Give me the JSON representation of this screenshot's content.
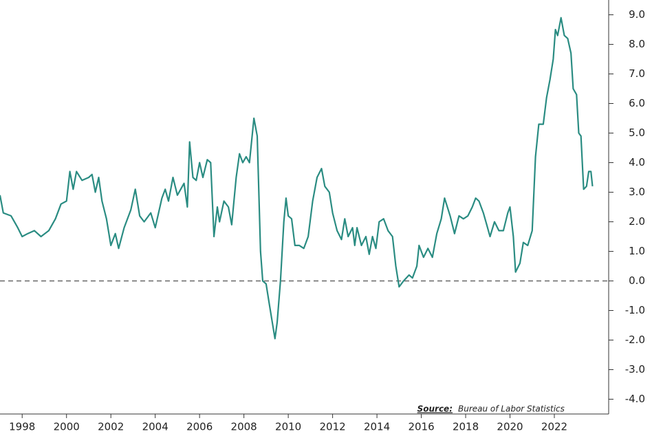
{
  "chart_data": {
    "type": "line",
    "source_label": "Source:",
    "source": "Bureau of Labor Statistics",
    "color": "#2a8c82",
    "x": [
      1997.0,
      1997.15,
      1997.5,
      1997.8,
      1998.0,
      1998.25,
      1998.55,
      1998.85,
      1999.2,
      1999.5,
      1999.75,
      2000.0,
      2000.15,
      2000.3,
      2000.45,
      2000.7,
      2001.0,
      2001.15,
      2001.3,
      2001.45,
      2001.6,
      2001.8,
      2002.0,
      2002.2,
      2002.35,
      2002.6,
      2002.9,
      2003.1,
      2003.3,
      2003.5,
      2003.8,
      2004.0,
      2004.3,
      2004.45,
      2004.6,
      2004.8,
      2005.0,
      2005.3,
      2005.45,
      2005.55,
      2005.7,
      2005.85,
      2006.0,
      2006.15,
      2006.35,
      2006.5,
      2006.65,
      2006.8,
      2006.9,
      2007.1,
      2007.3,
      2007.45,
      2007.65,
      2007.8,
      2007.95,
      2008.1,
      2008.25,
      2008.45,
      2008.6,
      2008.75,
      2008.85,
      2009.0,
      2009.15,
      2009.3,
      2009.4,
      2009.5,
      2009.65,
      2009.8,
      2009.9,
      2010.0,
      2010.15,
      2010.3,
      2010.5,
      2010.7,
      2010.9,
      2011.1,
      2011.3,
      2011.5,
      2011.65,
      2011.85,
      2012.0,
      2012.2,
      2012.4,
      2012.55,
      2012.7,
      2012.9,
      2013.0,
      2013.1,
      2013.3,
      2013.5,
      2013.65,
      2013.8,
      2013.95,
      2014.1,
      2014.3,
      2014.5,
      2014.7,
      2014.85,
      2015.0,
      2015.2,
      2015.45,
      2015.6,
      2015.8,
      2015.9,
      2016.1,
      2016.3,
      2016.5,
      2016.7,
      2016.9,
      2017.05,
      2017.3,
      2017.5,
      2017.7,
      2017.9,
      2018.1,
      2018.3,
      2018.45,
      2018.6,
      2018.8,
      2018.95,
      2019.1,
      2019.3,
      2019.5,
      2019.7,
      2019.9,
      2020.0,
      2020.15,
      2020.25,
      2020.45,
      2020.6,
      2020.8,
      2021.0,
      2021.15,
      2021.3,
      2021.5,
      2021.65,
      2021.8,
      2021.95,
      2022.05,
      2022.15,
      2022.3,
      2022.45,
      2022.6,
      2022.75,
      2022.85,
      2023.0,
      2023.1,
      2023.2,
      2023.32,
      2023.45,
      2023.55,
      2023.65,
      2023.72
    ],
    "values": [
      2.9,
      2.3,
      2.2,
      1.8,
      1.5,
      1.6,
      1.7,
      1.5,
      1.7,
      2.1,
      2.6,
      2.7,
      3.7,
      3.1,
      3.7,
      3.4,
      3.5,
      3.6,
      3.0,
      3.5,
      2.7,
      2.1,
      1.2,
      1.6,
      1.1,
      1.8,
      2.4,
      3.1,
      2.2,
      2.0,
      2.3,
      1.8,
      2.8,
      3.1,
      2.7,
      3.5,
      2.9,
      3.3,
      2.5,
      4.7,
      3.5,
      3.4,
      4.0,
      3.5,
      4.1,
      4.0,
      1.5,
      2.5,
      2.0,
      2.7,
      2.5,
      1.9,
      3.5,
      4.3,
      4.0,
      4.2,
      4.0,
      5.5,
      4.9,
      1.0,
      0.0,
      -0.1,
      -0.8,
      -1.5,
      -1.95,
      -1.4,
      0.0,
      2.0,
      2.8,
      2.2,
      2.1,
      1.2,
      1.2,
      1.1,
      1.5,
      2.7,
      3.5,
      3.8,
      3.2,
      3.0,
      2.3,
      1.7,
      1.4,
      2.1,
      1.5,
      1.8,
      1.2,
      1.8,
      1.2,
      1.5,
      0.9,
      1.5,
      1.1,
      2.0,
      2.1,
      1.7,
      1.5,
      0.5,
      -0.2,
      0.0,
      0.2,
      0.1,
      0.5,
      1.2,
      0.8,
      1.1,
      0.8,
      1.6,
      2.1,
      2.8,
      2.2,
      1.6,
      2.2,
      2.1,
      2.2,
      2.5,
      2.8,
      2.7,
      2.3,
      1.9,
      1.5,
      2.0,
      1.7,
      1.7,
      2.3,
      2.5,
      1.5,
      0.3,
      0.6,
      1.3,
      1.2,
      1.7,
      4.2,
      5.3,
      5.3,
      6.2,
      6.8,
      7.5,
      8.5,
      8.3,
      8.9,
      8.3,
      8.2,
      7.7,
      6.5,
      6.3,
      5.0,
      4.9,
      3.1,
      3.2,
      3.7,
      3.7,
      3.2
    ],
    "xlim": [
      1997.0,
      2024.45
    ],
    "xticks": [
      1998,
      2000,
      2002,
      2004,
      2006,
      2008,
      2010,
      2012,
      2014,
      2016,
      2018,
      2020,
      2022
    ],
    "ylim": [
      -4.5,
      9.5
    ],
    "yticks": [
      {
        "value": -4,
        "label": "-4.0"
      },
      {
        "value": -3,
        "label": "-3.0"
      },
      {
        "value": -2,
        "label": "-2.0"
      },
      {
        "value": -1,
        "label": "-1.0"
      },
      {
        "value": 0,
        "label": "0.0"
      },
      {
        "value": 1,
        "label": "1.0"
      },
      {
        "value": 2,
        "label": "2.0"
      },
      {
        "value": 3,
        "label": "3.0"
      },
      {
        "value": 4,
        "label": "4.0"
      },
      {
        "value": 5,
        "label": "5.0"
      },
      {
        "value": 6,
        "label": "6.0"
      },
      {
        "value": 7,
        "label": "7.0"
      },
      {
        "value": 8,
        "label": "8.0"
      },
      {
        "value": 9,
        "label": "9.0"
      }
    ],
    "zero_line": true,
    "y_axis_side": "right"
  }
}
